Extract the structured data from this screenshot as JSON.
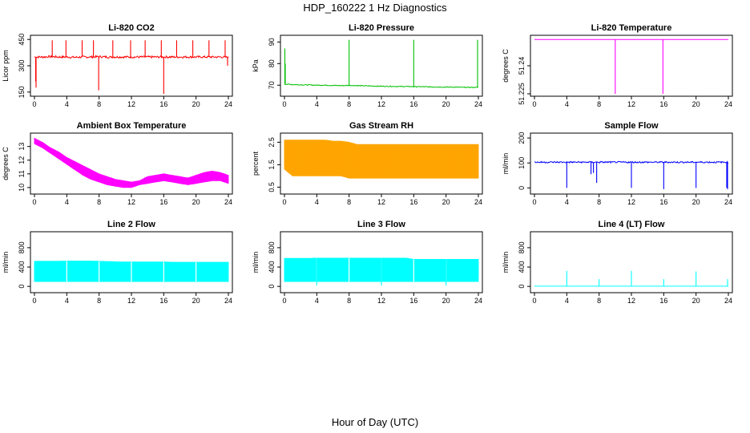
{
  "page": {
    "title": "HDP_160222  1 Hz Diagnostics",
    "xlabel": "Hour of Day (UTC)"
  },
  "chart_data": [
    {
      "type": "line",
      "title": "Li-820 CO2",
      "ylabel": "Licor ppm",
      "color": "#ff0000",
      "xlim": [
        0,
        24
      ],
      "xticks": [
        0,
        4,
        8,
        12,
        16,
        20,
        24
      ],
      "ylim": [
        140,
        460
      ],
      "yticks": [
        150,
        300,
        450
      ],
      "baseline": [
        350,
        350,
        352,
        350,
        350,
        348,
        350,
        350,
        352,
        350,
        350,
        350,
        350,
        350,
        350,
        350,
        350,
        350,
        350,
        350,
        350,
        350,
        350,
        350,
        348
      ],
      "noise": 6,
      "spikes": [
        {
          "x": 0.15,
          "y": 210
        },
        {
          "x": 0.2,
          "y": 175
        },
        {
          "x": 2.2,
          "y": 445
        },
        {
          "x": 3.9,
          "y": 445
        },
        {
          "x": 5.9,
          "y": 445
        },
        {
          "x": 7.3,
          "y": 445
        },
        {
          "x": 7.95,
          "y": 160
        },
        {
          "x": 9.7,
          "y": 445
        },
        {
          "x": 11.9,
          "y": 445
        },
        {
          "x": 13.7,
          "y": 445
        },
        {
          "x": 15.7,
          "y": 445
        },
        {
          "x": 16.0,
          "y": 140
        },
        {
          "x": 17.6,
          "y": 445
        },
        {
          "x": 19.6,
          "y": 445
        },
        {
          "x": 21.6,
          "y": 445
        },
        {
          "x": 23.6,
          "y": 445
        },
        {
          "x": 23.9,
          "y": 300
        }
      ]
    },
    {
      "type": "line",
      "title": "Li-820 Pressure",
      "ylabel": "kPa",
      "color": "#00c000",
      "xlim": [
        0,
        24
      ],
      "xticks": [
        0,
        4,
        8,
        12,
        16,
        20,
        24
      ],
      "ylim": [
        66,
        92
      ],
      "yticks": [
        70,
        80,
        90
      ],
      "baseline": [
        70.5,
        70.3,
        70.2,
        70.1,
        70.0,
        70.0,
        69.9,
        69.8,
        69.9,
        69.8,
        69.7,
        69.6,
        69.5,
        69.5,
        69.4,
        69.4,
        69.3,
        69.3,
        69.2,
        69.2,
        69.1,
        69.1,
        69.0,
        69.0,
        69.0
      ],
      "noise": 0.2,
      "spikes": [
        {
          "x": 0.05,
          "y": 87
        },
        {
          "x": 0.1,
          "y": 80
        },
        {
          "x": 8.0,
          "y": 91
        },
        {
          "x": 16.0,
          "y": 91
        },
        {
          "x": 23.9,
          "y": 91
        }
      ]
    },
    {
      "type": "line",
      "title": "Li-820 Temperature",
      "ylabel": "degrees C",
      "color": "#ff00ff",
      "xlim": [
        0,
        24
      ],
      "xticks": [
        0,
        4,
        8,
        12,
        16,
        20,
        24
      ],
      "ylim": [
        51.225,
        51.255
      ],
      "yticks": [
        51.225,
        51.24
      ],
      "baseline": [
        51.254,
        51.254,
        51.254,
        51.254,
        51.254,
        51.254,
        51.254,
        51.254,
        51.254,
        51.254,
        51.254,
        51.254,
        51.254,
        51.254,
        51.254,
        51.254,
        51.254,
        51.254,
        51.254,
        51.254,
        51.254,
        51.254,
        51.254,
        51.254,
        51.254
      ],
      "noise": 0,
      "spikes": [
        {
          "x": 10.0,
          "y": 51.225
        },
        {
          "x": 15.9,
          "y": 51.225
        }
      ]
    },
    {
      "type": "band",
      "title": "Ambient Box Temperature",
      "ylabel": "degrees C",
      "color": "#ff00ff",
      "xlim": [
        0,
        24
      ],
      "xticks": [
        0,
        4,
        8,
        12,
        16,
        20,
        24
      ],
      "ylim": [
        9.7,
        13.8
      ],
      "yticks": [
        10,
        11,
        12,
        13
      ],
      "upper": [
        13.6,
        13.3,
        12.9,
        12.6,
        12.2,
        11.9,
        11.6,
        11.3,
        11.0,
        10.8,
        10.6,
        10.5,
        10.4,
        10.5,
        10.8,
        10.9,
        11.0,
        10.9,
        10.8,
        10.7,
        10.9,
        11.1,
        11.2,
        11.1,
        10.9
      ],
      "lower": [
        13.2,
        12.9,
        12.5,
        12.1,
        11.7,
        11.3,
        10.9,
        10.6,
        10.4,
        10.2,
        10.1,
        10.0,
        10.0,
        10.2,
        10.3,
        10.4,
        10.5,
        10.4,
        10.3,
        10.2,
        10.3,
        10.4,
        10.5,
        10.5,
        10.3
      ],
      "spikes": []
    },
    {
      "type": "band",
      "title": "Gas Stream RH",
      "ylabel": "percent",
      "color": "#ffa500",
      "xlim": [
        0,
        24
      ],
      "xticks": [
        0,
        4,
        8,
        12,
        16,
        20,
        24
      ],
      "ylim": [
        0.3,
        2.8
      ],
      "yticks": [
        0.5,
        1.5,
        2.5
      ],
      "upper": [
        2.6,
        2.6,
        2.6,
        2.6,
        2.6,
        2.6,
        2.55,
        2.55,
        2.5,
        2.4,
        2.4,
        2.4,
        2.4,
        2.4,
        2.4,
        2.4,
        2.4,
        2.4,
        2.4,
        2.4,
        2.4,
        2.4,
        2.4,
        2.4,
        2.4
      ],
      "lower": [
        1.3,
        1.0,
        1.0,
        1.0,
        1.0,
        1.0,
        1.0,
        1.0,
        0.9,
        0.9,
        0.9,
        0.9,
        0.9,
        0.9,
        0.9,
        0.9,
        0.9,
        0.9,
        0.9,
        0.9,
        0.9,
        0.9,
        0.9,
        0.9,
        0.9
      ],
      "spikes": []
    },
    {
      "type": "line",
      "title": "Sample Flow",
      "ylabel": "ml/min",
      "color": "#0000ff",
      "xlim": [
        0,
        24
      ],
      "xticks": [
        0,
        4,
        8,
        12,
        16,
        20,
        24
      ],
      "ylim": [
        -15,
        210
      ],
      "yticks": [
        0,
        100,
        200
      ],
      "baseline": [
        103,
        103,
        103,
        103,
        103,
        103,
        103,
        103,
        103,
        103,
        103,
        103,
        103,
        103,
        103,
        103,
        103,
        103,
        103,
        103,
        103,
        103,
        103,
        103,
        103
      ],
      "noise": 3,
      "spikes": [
        {
          "x": 4.0,
          "y": 0
        },
        {
          "x": 7.0,
          "y": 55
        },
        {
          "x": 7.3,
          "y": 60
        },
        {
          "x": 7.7,
          "y": 20
        },
        {
          "x": 12.0,
          "y": 0
        },
        {
          "x": 16.0,
          "y": -5
        },
        {
          "x": 20.0,
          "y": 0
        },
        {
          "x": 23.8,
          "y": 0
        },
        {
          "x": 23.9,
          "y": -5
        }
      ]
    },
    {
      "type": "band",
      "title": "Line 2 Flow",
      "ylabel": "ml/min",
      "color": "#00ffff",
      "xlim": [
        0,
        24
      ],
      "xticks": [
        0,
        4,
        8,
        12,
        16,
        20,
        24
      ],
      "ylim": [
        -80,
        1080
      ],
      "yticks": [
        0,
        400,
        800
      ],
      "upper": [
        520,
        520,
        520,
        520,
        525,
        525,
        525,
        525,
        520,
        515,
        510,
        505,
        505,
        505,
        505,
        505,
        505,
        500,
        500,
        500,
        500,
        500,
        500,
        500,
        500
      ],
      "lower": [
        100,
        100,
        100,
        100,
        100,
        100,
        100,
        100,
        100,
        100,
        100,
        100,
        100,
        100,
        100,
        100,
        100,
        100,
        100,
        100,
        100,
        100,
        100,
        100,
        100
      ],
      "gaps": [
        4,
        8,
        12,
        16,
        20
      ],
      "spikes": []
    },
    {
      "type": "band",
      "title": "Line 3 Flow",
      "ylabel": "ml/min",
      "color": "#00ffff",
      "xlim": [
        0,
        24
      ],
      "xticks": [
        0,
        4,
        8,
        12,
        16,
        20,
        24
      ],
      "ylim": [
        -80,
        1080
      ],
      "yticks": [
        0,
        400,
        800
      ],
      "upper": [
        580,
        580,
        580,
        580,
        585,
        585,
        585,
        585,
        585,
        585,
        585,
        585,
        585,
        585,
        585,
        585,
        560,
        560,
        560,
        560,
        560,
        560,
        560,
        560,
        560
      ],
      "lower": [
        100,
        100,
        100,
        100,
        100,
        100,
        100,
        100,
        100,
        100,
        100,
        100,
        100,
        100,
        100,
        100,
        100,
        100,
        100,
        100,
        100,
        100,
        100,
        100,
        100
      ],
      "gaps": [
        4,
        8,
        12,
        16,
        20
      ],
      "spikes": [
        {
          "x": 4.0,
          "y": 20
        },
        {
          "x": 12.0,
          "y": 20
        },
        {
          "x": 20.0,
          "y": 20
        }
      ]
    },
    {
      "type": "line",
      "title": "Line 4 (LT) Flow",
      "ylabel": "ml/min",
      "color": "#00ffff",
      "xlim": [
        0,
        24
      ],
      "xticks": [
        0,
        4,
        8,
        12,
        16,
        20,
        24
      ],
      "ylim": [
        -80,
        1080
      ],
      "yticks": [
        0,
        400,
        800
      ],
      "baseline": [
        5,
        5,
        5,
        5,
        5,
        5,
        5,
        5,
        5,
        5,
        5,
        5,
        5,
        5,
        5,
        5,
        5,
        5,
        5,
        5,
        5,
        5,
        5,
        5,
        5
      ],
      "noise": 0,
      "spikes": [
        {
          "x": 4.0,
          "y": 320
        },
        {
          "x": 8.0,
          "y": 150
        },
        {
          "x": 12.0,
          "y": 320
        },
        {
          "x": 16.0,
          "y": 150
        },
        {
          "x": 20.0,
          "y": 310
        },
        {
          "x": 23.9,
          "y": 150
        }
      ]
    }
  ]
}
